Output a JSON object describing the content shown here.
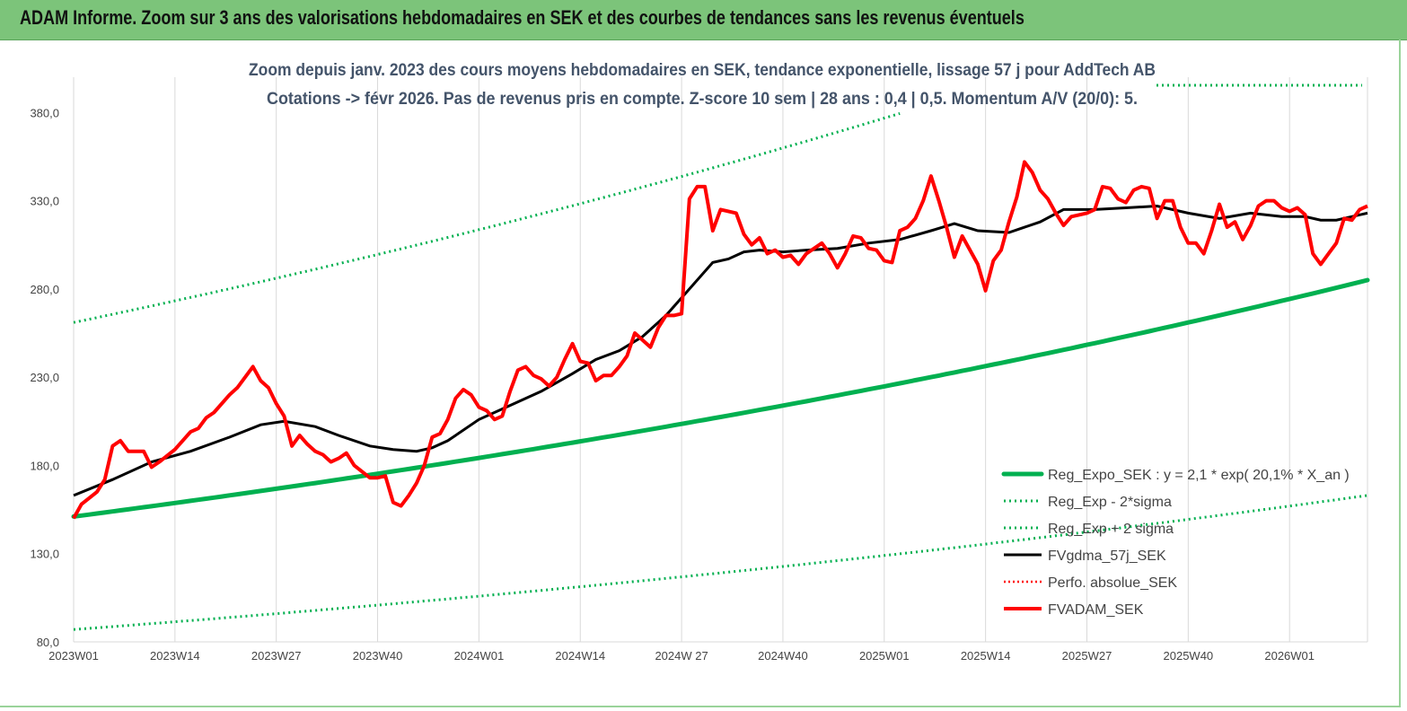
{
  "header": {
    "title": "ADAM Informe. Zoom sur 3 ans des valorisations hebdomadaires en SEK et des courbes de tendances sans les revenus éventuels"
  },
  "colors": {
    "banner": "#7cc47a",
    "reg_expo": "#00b050",
    "sigma": "#00b050",
    "gdma": "#000000",
    "perfo": "#ff0000",
    "adam": "#ff0000"
  },
  "chart_data": {
    "type": "line",
    "title": "Zoom depuis janv. 2023 des cours moyens hebdomadaires en SEK, tendance exponentielle, lissage 57 j pour AddTech AB",
    "subtitle": "Cotations -> févr 2026. Pas de revenus pris en compte. Z-score 10 sem | 28 ans : 0,4 | 0,5. Momentum A/V (20/0): 5.",
    "xlabel": "",
    "ylabel": "",
    "ylim": [
      80,
      400
    ],
    "yticks": [
      "80,0",
      "130,0",
      "180,0",
      "230,0",
      "280,0",
      "330,0",
      "380,0"
    ],
    "ytick_values": [
      80,
      130,
      180,
      230,
      280,
      330,
      380
    ],
    "xticks": [
      "2023W01",
      "2023W14",
      "2023W27",
      "2023W40",
      "2024W01",
      "2024W14",
      "2024W 27",
      "2024W40",
      "2025W01",
      "2025W14",
      "2025W27",
      "2025W40",
      "2026W01"
    ],
    "xtick_weeks": [
      0,
      13,
      26,
      39,
      52,
      65,
      78,
      91,
      104,
      117,
      130,
      143,
      156
    ],
    "x_last_week": 166,
    "grid": "vertical",
    "legend_position": "bottom-right",
    "series": [
      {
        "name": "Reg_Expo_SEK : y = 2,1 * exp( 20,1% *  X_an )",
        "style": "solid-thick",
        "weeks": [
          0,
          166
        ],
        "exp": {
          "start": 151,
          "end": 285
        }
      },
      {
        "name": "Reg_Exp - 2*sigma",
        "style": "dotted",
        "weeks": [
          0,
          166
        ],
        "exp": {
          "start": 87,
          "end": 163
        }
      },
      {
        "name": "Reg_Exp + 2 sigma",
        "style": "dotted",
        "weeks": [
          0,
          166
        ],
        "exp": {
          "start": 261,
          "end": 469
        }
      },
      {
        "name": "FVgdma_57j_SEK",
        "style": "solid",
        "points": [
          [
            0,
            163
          ],
          [
            5,
            172
          ],
          [
            10,
            182
          ],
          [
            15,
            188
          ],
          [
            20,
            196
          ],
          [
            24,
            203
          ],
          [
            27,
            205
          ],
          [
            31,
            202
          ],
          [
            34,
            197
          ],
          [
            38,
            191
          ],
          [
            41,
            189
          ],
          [
            44,
            188
          ],
          [
            46,
            190
          ],
          [
            48,
            194
          ],
          [
            52,
            206
          ],
          [
            56,
            214
          ],
          [
            60,
            222
          ],
          [
            64,
            232
          ],
          [
            67,
            240
          ],
          [
            70,
            245
          ],
          [
            73,
            253
          ],
          [
            76,
            265
          ],
          [
            79,
            280
          ],
          [
            82,
            295
          ],
          [
            84,
            297
          ],
          [
            86,
            301
          ],
          [
            88,
            302
          ],
          [
            91,
            301
          ],
          [
            94,
            302
          ],
          [
            98,
            303
          ],
          [
            102,
            306
          ],
          [
            106,
            308
          ],
          [
            110,
            313
          ],
          [
            113,
            317
          ],
          [
            116,
            313
          ],
          [
            120,
            312
          ],
          [
            124,
            318
          ],
          [
            127,
            325
          ],
          [
            131,
            325
          ],
          [
            135,
            326
          ],
          [
            139,
            327
          ],
          [
            143,
            323
          ],
          [
            147,
            320
          ],
          [
            151,
            323
          ],
          [
            155,
            321
          ],
          [
            158,
            321
          ],
          [
            160,
            319
          ],
          [
            162,
            319
          ],
          [
            165,
            322
          ],
          [
            166,
            323
          ]
        ]
      },
      {
        "name": "Perfo. absolue_SEK",
        "style": "dotted-red",
        "points": []
      },
      {
        "name": "FVADAM_SEK",
        "style": "solid-thick-red",
        "points": [
          [
            0,
            150
          ],
          [
            1,
            158
          ],
          [
            3,
            165
          ],
          [
            4,
            172
          ],
          [
            5,
            191
          ],
          [
            6,
            194
          ],
          [
            7,
            188
          ],
          [
            9,
            188
          ],
          [
            10,
            179
          ],
          [
            11,
            182
          ],
          [
            13,
            189
          ],
          [
            15,
            199
          ],
          [
            16,
            201
          ],
          [
            17,
            207
          ],
          [
            18,
            210
          ],
          [
            20,
            220
          ],
          [
            21,
            224
          ],
          [
            23,
            236
          ],
          [
            24,
            228
          ],
          [
            25,
            224
          ],
          [
            26,
            215
          ],
          [
            27,
            208
          ],
          [
            28,
            191
          ],
          [
            29,
            197
          ],
          [
            30,
            192
          ],
          [
            31,
            188
          ],
          [
            32,
            186
          ],
          [
            33,
            182
          ],
          [
            34,
            184
          ],
          [
            35,
            187
          ],
          [
            36,
            180
          ],
          [
            38,
            173
          ],
          [
            39,
            173
          ],
          [
            40,
            174
          ],
          [
            41,
            159
          ],
          [
            42,
            157
          ],
          [
            43,
            163
          ],
          [
            44,
            170
          ],
          [
            45,
            180
          ],
          [
            46,
            196
          ],
          [
            47,
            198
          ],
          [
            48,
            206
          ],
          [
            49,
            218
          ],
          [
            50,
            223
          ],
          [
            51,
            220
          ],
          [
            52,
            213
          ],
          [
            53,
            211
          ],
          [
            54,
            206
          ],
          [
            55,
            208
          ],
          [
            56,
            222
          ],
          [
            57,
            234
          ],
          [
            58,
            236
          ],
          [
            59,
            231
          ],
          [
            60,
            229
          ],
          [
            61,
            225
          ],
          [
            62,
            230
          ],
          [
            63,
            240
          ],
          [
            64,
            249
          ],
          [
            65,
            239
          ],
          [
            66,
            238
          ],
          [
            67,
            228
          ],
          [
            68,
            231
          ],
          [
            69,
            231
          ],
          [
            70,
            236
          ],
          [
            71,
            242
          ],
          [
            72,
            255
          ],
          [
            73,
            251
          ],
          [
            74,
            247
          ],
          [
            75,
            258
          ],
          [
            76,
            265
          ],
          [
            77,
            265
          ],
          [
            78,
            266
          ],
          [
            79,
            331
          ],
          [
            80,
            338
          ],
          [
            81,
            338
          ],
          [
            82,
            313
          ],
          [
            83,
            325
          ],
          [
            85,
            323
          ],
          [
            86,
            311
          ],
          [
            87,
            305
          ],
          [
            88,
            309
          ],
          [
            89,
            300
          ],
          [
            90,
            302
          ],
          [
            91,
            298
          ],
          [
            92,
            299
          ],
          [
            93,
            294
          ],
          [
            94,
            300
          ],
          [
            95,
            303
          ],
          [
            96,
            306
          ],
          [
            97,
            300
          ],
          [
            98,
            292
          ],
          [
            99,
            300
          ],
          [
            100,
            310
          ],
          [
            101,
            309
          ],
          [
            102,
            303
          ],
          [
            103,
            302
          ],
          [
            104,
            296
          ],
          [
            105,
            295
          ],
          [
            106,
            313
          ],
          [
            107,
            315
          ],
          [
            108,
            320
          ],
          [
            109,
            330
          ],
          [
            110,
            344
          ],
          [
            111,
            330
          ],
          [
            112,
            315
          ],
          [
            113,
            298
          ],
          [
            114,
            310
          ],
          [
            116,
            294
          ],
          [
            117,
            279
          ],
          [
            118,
            296
          ],
          [
            119,
            302
          ],
          [
            120,
            318
          ],
          [
            121,
            332
          ],
          [
            122,
            352
          ],
          [
            123,
            346
          ],
          [
            124,
            336
          ],
          [
            125,
            331
          ],
          [
            126,
            323
          ],
          [
            127,
            316
          ],
          [
            128,
            321
          ],
          [
            130,
            323
          ],
          [
            131,
            325
          ],
          [
            132,
            338
          ],
          [
            133,
            337
          ],
          [
            134,
            331
          ],
          [
            135,
            329
          ],
          [
            136,
            336
          ],
          [
            137,
            338
          ],
          [
            138,
            337
          ],
          [
            139,
            320
          ],
          [
            140,
            330
          ],
          [
            141,
            330
          ],
          [
            142,
            315
          ],
          [
            143,
            306
          ],
          [
            144,
            306
          ],
          [
            145,
            300
          ],
          [
            146,
            313
          ],
          [
            147,
            328
          ],
          [
            148,
            315
          ],
          [
            149,
            318
          ],
          [
            150,
            308
          ],
          [
            151,
            316
          ],
          [
            152,
            327
          ],
          [
            153,
            330
          ],
          [
            154,
            330
          ],
          [
            155,
            326
          ],
          [
            156,
            324
          ],
          [
            157,
            326
          ],
          [
            158,
            322
          ],
          [
            159,
            300
          ],
          [
            160,
            294
          ],
          [
            161,
            300
          ],
          [
            162,
            306
          ],
          [
            163,
            320
          ],
          [
            164,
            319
          ],
          [
            165,
            325
          ],
          [
            166,
            327
          ]
        ]
      }
    ]
  }
}
